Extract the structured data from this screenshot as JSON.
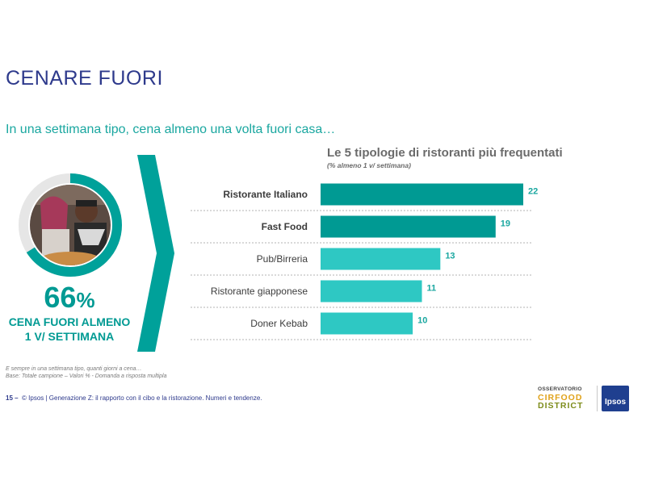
{
  "title": "CENARE FUORI",
  "subtitle": "In una settimana tipo, cena almeno una volta fuori casa…",
  "headline": {
    "value": "66",
    "unit": "%",
    "label_line1": "CENA FUORI ALMENO",
    "label_line2": "1 V/ SETTIMANA",
    "ring_fraction": 0.66
  },
  "chart_data": {
    "type": "bar",
    "orientation": "horizontal",
    "title": "Le 5 tipologie di ristoranti più frequentati",
    "subtitle": "(% almeno 1 v/ settimana)",
    "categories": [
      "Ristorante Italiano",
      "Fast Food",
      "Pub/Birreria",
      "Ristorante giapponese",
      "Doner Kebab"
    ],
    "values": [
      22,
      19,
      13,
      11,
      10
    ],
    "bold_categories": [
      "Ristorante Italiano",
      "Fast Food"
    ],
    "bar_colors": [
      "#009a93",
      "#009a93",
      "#2ec8c3",
      "#2ec8c3",
      "#2ec8c3"
    ],
    "label_color": "#1aa7a0",
    "xlim": [
      0,
      22
    ],
    "grid": false
  },
  "notes": {
    "line1": "E sempre in una settimana tipo, quanti giorni a cena…",
    "line2": "Base: Totale campione – Valori % - Domanda a risposta multipla"
  },
  "footer": {
    "page": "15 –",
    "text": "© Ipsos | Generazione Z: il rapporto con il cibo e la ristorazione. Numeri e tendenze."
  },
  "logos": {
    "ocd_line1": "OSSERVATORIO",
    "ocd_line2": "CIRFOOD",
    "ocd_line3": "DISTRICT",
    "ipsos": "Ipsos"
  },
  "colors": {
    "title": "#2e3a8c",
    "accent": "#009a93",
    "accent_light": "#2ec8c3"
  },
  "photo": {
    "icon": "diners-photo-icon"
  }
}
